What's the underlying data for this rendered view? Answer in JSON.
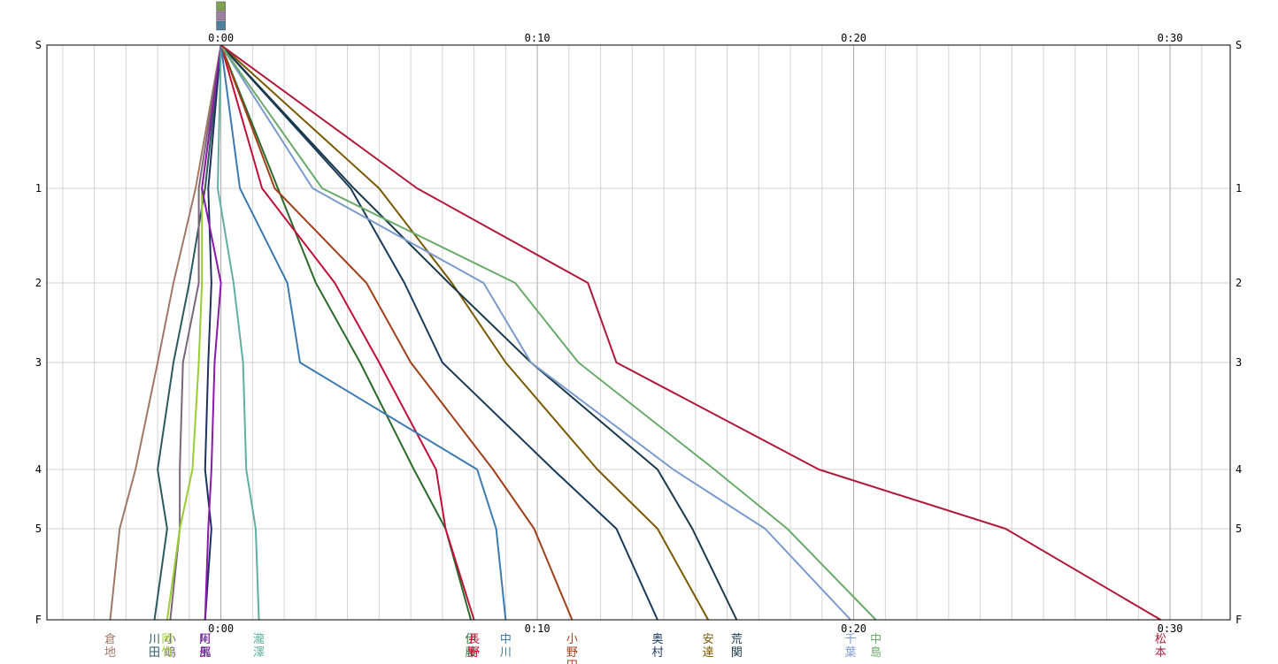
{
  "chart_data": {
    "type": "line",
    "x_ticks": [
      "0:00",
      "0:10",
      "0:20",
      "0:30"
    ],
    "x_tick_values": [
      0,
      10,
      20,
      30
    ],
    "xlim": [
      -5.5,
      31.9
    ],
    "y_levels": [
      "S",
      "1",
      "2",
      "3",
      "4",
      "5",
      "F"
    ],
    "y_level_values": [
      0,
      1,
      2,
      3,
      4,
      5,
      6
    ],
    "grid": true,
    "series": [
      {
        "name": "倉地",
        "color": "#a07868",
        "values": [
          0,
          -0.8,
          -1.5,
          -2.0,
          -2.7,
          -3.2,
          -3.5
        ]
      },
      {
        "name": "川田",
        "color": "#2a5a60",
        "values": [
          0,
          -0.5,
          -1.0,
          -1.5,
          -2.0,
          -1.7,
          -2.1
        ]
      },
      {
        "name": "小嶋",
        "color": "#7a6878",
        "values": [
          0,
          -0.7,
          -0.7,
          -1.2,
          -1.3,
          -1.3,
          -1.6
        ]
      },
      {
        "name": "岡竹",
        "color": "#9acd32",
        "values": [
          0,
          -0.6,
          -0.6,
          -0.7,
          -0.9,
          -1.3,
          -1.7
        ]
      },
      {
        "name": "川尻",
        "color": "#203060",
        "values": [
          0,
          -0.4,
          -0.3,
          -0.4,
          -0.5,
          -0.3,
          -0.5
        ]
      },
      {
        "name": "阿部",
        "color": "#8a1aaa",
        "values": [
          0,
          -0.6,
          0.0,
          -0.2,
          -0.3,
          -0.4,
          -0.5
        ]
      },
      {
        "name": "瀧澤",
        "color": "#60b0a0",
        "values": [
          0,
          -0.1,
          0.4,
          0.7,
          0.8,
          1.1,
          1.2
        ]
      },
      {
        "name": "伊藤",
        "color": "#2a6a2a",
        "values": [
          0,
          1.8,
          3.0,
          4.4,
          6.1,
          7.1,
          7.9
        ]
      },
      {
        "name": "長野",
        "color": "#c0103a",
        "values": [
          0,
          1.3,
          3.6,
          5.0,
          6.8,
          7.1,
          8.0
        ]
      },
      {
        "name": "中川",
        "color": "#3c7ab0",
        "values": [
          0,
          0.6,
          2.1,
          2.5,
          8.1,
          8.7,
          9.0
        ]
      },
      {
        "name": "小野田",
        "color": "#a0401a",
        "values": [
          0,
          1.7,
          4.6,
          6.0,
          8.6,
          9.9,
          11.1
        ]
      },
      {
        "name": "奥村",
        "color": "#1a3a5a",
        "values": [
          0,
          4.1,
          5.8,
          7.0,
          10.5,
          12.5,
          13.8
        ]
      },
      {
        "name": "安達",
        "color": "#7a5a00",
        "values": [
          0,
          5.0,
          7.3,
          9.0,
          11.9,
          13.8,
          15.4
        ]
      },
      {
        "name": "荒関",
        "color": "#1a3a4a",
        "values": [
          0,
          4.2,
          7.2,
          9.8,
          13.8,
          14.9,
          16.3
        ]
      },
      {
        "name": "千葉",
        "color": "#7a9acc",
        "values": [
          0,
          2.9,
          8.3,
          9.8,
          14.3,
          17.2,
          19.9
        ]
      },
      {
        "name": "中島",
        "color": "#6aaa6a",
        "values": [
          0,
          3.2,
          9.3,
          11.3,
          15.6,
          17.9,
          20.7
        ]
      },
      {
        "name": "松本",
        "color": "#b01a3a",
        "values": [
          0,
          6.2,
          11.6,
          12.5,
          18.9,
          24.8,
          29.7
        ]
      }
    ]
  }
}
